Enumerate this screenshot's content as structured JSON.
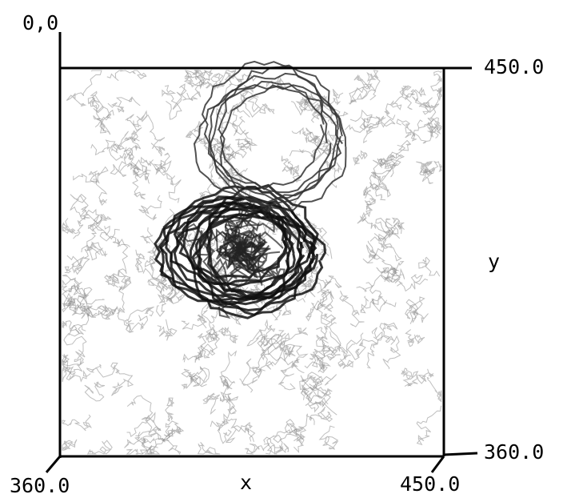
{
  "labels": {
    "origin": "0,0",
    "y_top": "450.0",
    "y_axis": "y",
    "y_bottom": "360.0",
    "x_left": "360.0",
    "x_axis": "x",
    "x_right": "450.0"
  }
}
